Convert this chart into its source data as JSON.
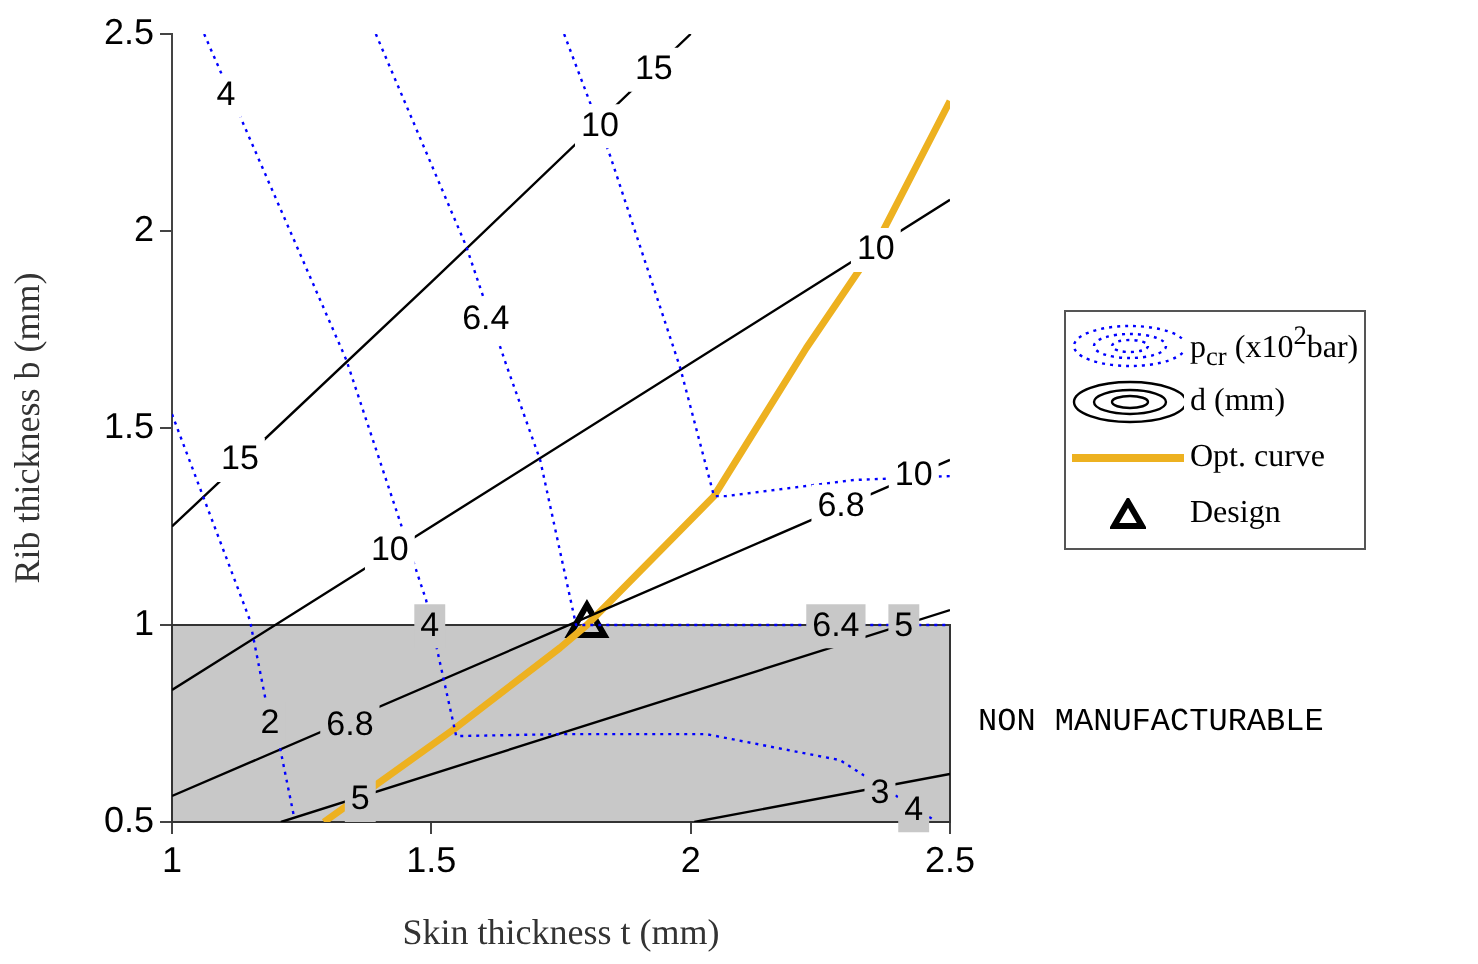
{
  "chart_data": {
    "type": "line",
    "xlabel": "Skin thickness t (mm)",
    "ylabel": "Rib thickness b (mm)",
    "xlim": [
      1,
      2.5
    ],
    "xticks": [
      1,
      1.5,
      2,
      2.5
    ],
    "ylim": [
      0.5,
      2.5
    ],
    "yticks": [
      0.5,
      1,
      1.5,
      2,
      2.5
    ],
    "grid": false,
    "legend": "right",
    "series": [
      {
        "name": "p$_{cr}$ (x10$^{2}$bar)",
        "color": "#0000ff",
        "line_style": "dotted",
        "marker": "none",
        "x": [
          1.062,
          1.336,
          1.49,
          1.548,
          1.748,
          2.03,
          2.288,
          2.469,
          null,
          1,
          1.15,
          1.181,
          1.208,
          1.235,
          null,
          1.393,
          1.567,
          1.644,
          1.71,
          1.779,
          1.825,
          2.211,
          2.5,
          null,
          1.756,
          1.845,
          1.98,
          2.045,
          2.068,
          2.315,
          2.5
        ],
        "values": [
          2.5,
          1.673,
          1.063,
          0.718,
          0.723,
          0.723,
          0.657,
          0.505,
          null,
          1.535,
          1.013,
          0.807,
          0.69,
          0.515,
          null,
          2.5,
          1.962,
          1.662,
          1.418,
          1.0,
          1.0,
          1.0,
          1.0,
          null,
          2.5,
          2.19,
          1.652,
          1.327,
          1.327,
          1.368,
          1.378
        ]
      },
      {
        "name": "d (mm)",
        "color": "#000000",
        "line_style": "solid",
        "marker": "none",
        "x": [
          1,
          1.5,
          2,
          null,
          1,
          2.5,
          null,
          1,
          1.748,
          2.5,
          null,
          1.21,
          2.5,
          null,
          2.007,
          2.5
        ],
        "values": [
          1.25,
          1.87,
          2.5,
          null,
          0.835,
          2.079,
          null,
          0.566,
          0.99,
          1.419,
          null,
          0.5,
          1.038,
          null,
          0.5,
          0.622
        ]
      },
      {
        "name": "Opt. curve",
        "color": "#edb120",
        "line_style": "solid",
        "marker": "none",
        "x": [
          1.293,
          1.544,
          1.748,
          1.8,
          2.045,
          2.223,
          2.354,
          2.5
        ],
        "values": [
          0.5,
          0.736,
          0.942,
          1.0,
          1.327,
          1.703,
          1.957,
          2.33
        ]
      },
      {
        "name": "Design",
        "type": "scatter",
        "color": "#000000",
        "marker": "triangle",
        "x": [
          1.8
        ],
        "values": [
          1.0
        ]
      }
    ],
    "bands": [
      {
        "axis": "y",
        "from": 0.5,
        "to": 1,
        "label": "NON MANUFACTURABLE",
        "color": "#c8c8c8"
      }
    ],
    "annotations": [
      {
        "text": "4",
        "x": 1.104,
        "y": 2.343
      },
      {
        "text": "6.4",
        "x": 1.605,
        "y": 1.774
      },
      {
        "text": "10",
        "x": 1.825,
        "y": 2.266
      },
      {
        "text": "15",
        "x": 1.929,
        "y": 2.409
      },
      {
        "text": "15",
        "x": 1.131,
        "y": 1.419
      },
      {
        "text": "10",
        "x": 1.42,
        "y": 1.19
      },
      {
        "text": "10",
        "x": 2.357,
        "y": 1.952
      },
      {
        "text": "6.8",
        "x": 2.29,
        "y": 1.3
      },
      {
        "text": "10",
        "x": 2.43,
        "y": 1.38
      },
      {
        "text": "4",
        "x": 1.497,
        "y": 0.997
      },
      {
        "text": "2",
        "x": 1.189,
        "y": 0.749
      },
      {
        "text": "6.8",
        "x": 1.343,
        "y": 0.744
      },
      {
        "text": "5",
        "x": 1.363,
        "y": 0.556
      },
      {
        "text": "6.4",
        "x": 2.28,
        "y": 0.997
      },
      {
        "text": "5",
        "x": 2.411,
        "y": 0.997
      },
      {
        "text": "3",
        "x": 2.365,
        "y": 0.571
      },
      {
        "text": "4",
        "x": 2.43,
        "y": 0.53
      }
    ]
  }
}
